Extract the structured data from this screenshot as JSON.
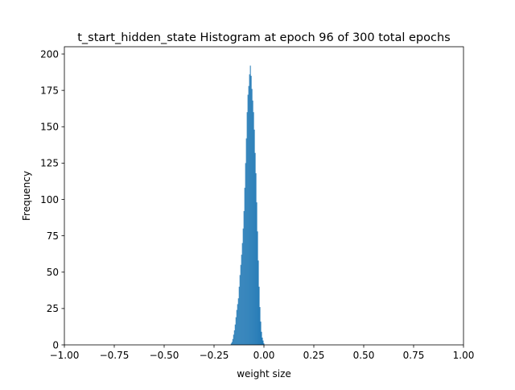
{
  "chart_data": {
    "type": "bar",
    "title": "t_start_hidden_state Histogram at epoch 96 of 300 total epochs",
    "xlabel": "weight size",
    "ylabel": "Frequency",
    "xlim": [
      -1.0,
      1.0
    ],
    "ylim": [
      0,
      205
    ],
    "xticks": [
      -1.0,
      -0.75,
      -0.5,
      -0.25,
      0.0,
      0.25,
      0.5,
      0.75,
      1.0
    ],
    "xtick_labels": [
      "−1.00",
      "−0.75",
      "−0.50",
      "−0.25",
      "0.00",
      "0.25",
      "0.50",
      "0.75",
      "1.00"
    ],
    "yticks": [
      0,
      25,
      50,
      75,
      100,
      125,
      150,
      175,
      200
    ],
    "ytick_labels": [
      "0",
      "25",
      "50",
      "75",
      "100",
      "125",
      "150",
      "175",
      "200"
    ],
    "grid": false,
    "bar_color": "#1f77b4",
    "bin_width": 0.004,
    "bin_start": -0.166,
    "values": [
      1,
      2,
      4,
      7,
      10,
      14,
      19,
      24,
      28,
      32,
      40,
      48,
      55,
      62,
      70,
      80,
      92,
      108,
      125,
      142,
      160,
      172,
      178,
      186,
      192,
      185,
      176,
      168,
      160,
      148,
      132,
      118,
      98,
      78,
      58,
      40,
      26,
      16,
      9,
      5,
      3,
      1
    ]
  }
}
